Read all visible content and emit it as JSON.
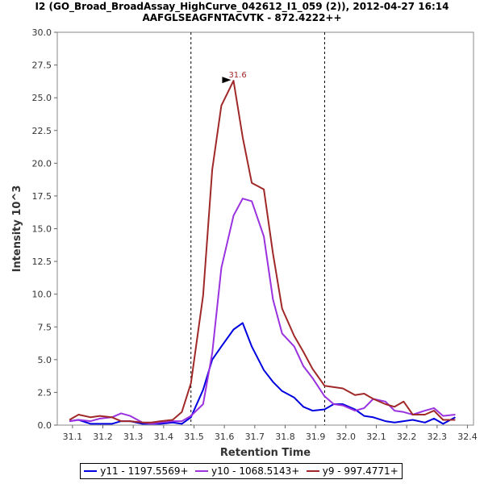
{
  "chart_data": {
    "type": "line",
    "title": "I2 (GO_Broad_BroadAssay_HighCurve_042612_I1_059 (2)), 2012-04-27 16:14",
    "subtitle": "AAFGLSEAGFNTACVTK - 872.4222++",
    "xlabel": "Retention Time",
    "ylabel": "Intensity 10^3",
    "xlim": [
      31.05,
      32.42
    ],
    "ylim": [
      0,
      30
    ],
    "x_ticks": [
      "31.1",
      "31.2",
      "31.3",
      "31.4",
      "31.5",
      "31.6",
      "31.7",
      "31.8",
      "31.9",
      "32.0",
      "32.1",
      "32.2",
      "32.3",
      "32.4"
    ],
    "y_ticks": [
      "0.0",
      "2.5",
      "5.0",
      "7.5",
      "10.0",
      "12.5",
      "15.0",
      "17.5",
      "20.0",
      "22.5",
      "25.0",
      "27.5",
      "30.0"
    ],
    "boundaries": [
      31.49,
      31.93
    ],
    "peak_annotation": {
      "x": 31.63,
      "y": 26.3,
      "label": "31.6"
    },
    "x": [
      31.09,
      31.12,
      31.16,
      31.19,
      31.23,
      31.26,
      31.29,
      31.33,
      31.36,
      31.39,
      31.43,
      31.46,
      31.49,
      31.53,
      31.56,
      31.59,
      31.63,
      31.66,
      31.69,
      31.73,
      31.76,
      31.79,
      31.83,
      31.86,
      31.89,
      31.93,
      31.96,
      31.99,
      32.03,
      32.06,
      32.09,
      32.13,
      32.16,
      32.19,
      32.22,
      32.26,
      32.29,
      32.32,
      32.36
    ],
    "series": [
      {
        "name": "y11 - 1197.5569+",
        "color": "#0000e0",
        "values": [
          0.3,
          0.4,
          0.1,
          0.1,
          0.1,
          0.3,
          0.3,
          0.1,
          0.1,
          0.1,
          0.2,
          0.1,
          0.6,
          2.7,
          5.0,
          6.0,
          7.3,
          7.8,
          6.0,
          4.2,
          3.3,
          2.6,
          2.1,
          1.4,
          1.1,
          1.2,
          1.6,
          1.6,
          1.2,
          0.7,
          0.6,
          0.3,
          0.2,
          0.3,
          0.4,
          0.2,
          0.5,
          0.1,
          0.6
        ]
      },
      {
        "name": "y10 - 1068.5143+",
        "color": "#9a32e0",
        "values": [
          0.3,
          0.4,
          0.3,
          0.5,
          0.6,
          0.9,
          0.7,
          0.2,
          0.1,
          0.2,
          0.3,
          0.3,
          0.7,
          1.6,
          5.5,
          12.0,
          16.0,
          17.3,
          17.1,
          14.4,
          9.6,
          7.0,
          6.0,
          4.5,
          3.6,
          2.2,
          1.6,
          1.5,
          1.1,
          1.3,
          2.0,
          1.8,
          1.1,
          1.0,
          0.8,
          1.1,
          1.3,
          0.7,
          0.8
        ]
      },
      {
        "name": "y9 - 997.4771+",
        "color": "#a02828",
        "values": [
          0.4,
          0.8,
          0.6,
          0.7,
          0.6,
          0.3,
          0.3,
          0.2,
          0.2,
          0.3,
          0.4,
          1.0,
          3.2,
          9.9,
          19.5,
          24.4,
          26.3,
          22.0,
          18.5,
          18.0,
          13.1,
          8.9,
          6.8,
          5.6,
          4.3,
          3.0,
          2.9,
          2.8,
          2.3,
          2.4,
          2.0,
          1.6,
          1.4,
          1.8,
          0.8,
          0.8,
          1.1,
          0.4,
          0.4
        ]
      }
    ]
  }
}
